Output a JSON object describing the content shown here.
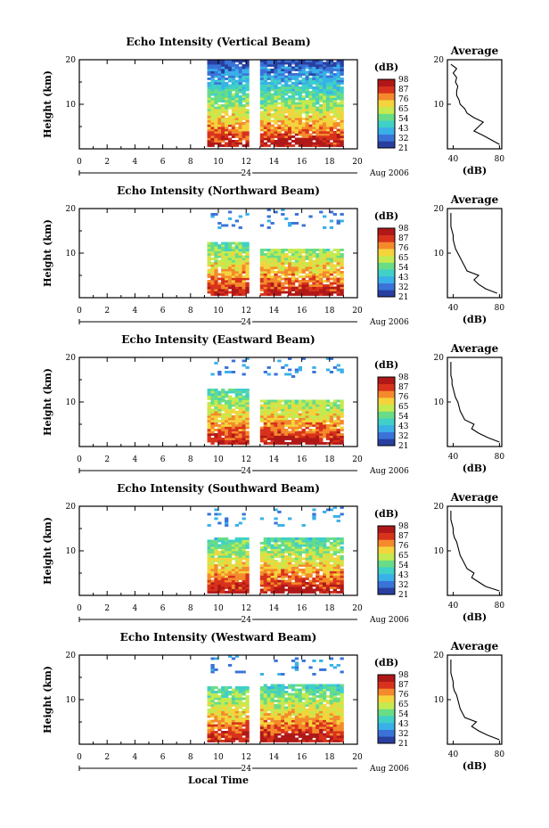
{
  "figure": {
    "xlabel": "Local Time",
    "date_label": "Aug 2006",
    "day_label": "24",
    "colorbar_unit": "(dB)",
    "avg_title": "Average",
    "avg_xlabel": "(dB)",
    "ylabel": "Height (km)"
  },
  "colors": {
    "scale": [
      "#283fa0",
      "#3a73d8",
      "#39b0e8",
      "#3fd0c8",
      "#68dc86",
      "#c4ea50",
      "#f4d43c",
      "#f48a2c",
      "#d8321c",
      "#b01818"
    ]
  },
  "chart_data": [
    {
      "type": "heatmap",
      "title": "Echo Intensity (Vertical Beam)",
      "xlabel": "Local Time",
      "ylabel": "Height (km)",
      "xlim": [
        0,
        20
      ],
      "ylim": [
        0,
        20
      ],
      "xticks": [
        0,
        2,
        4,
        6,
        8,
        10,
        12,
        14,
        16,
        18,
        20
      ],
      "yticks": [
        10,
        20
      ],
      "colorbar_ticks": [
        21,
        32,
        43,
        54,
        65,
        76,
        87,
        98
      ],
      "colorbar_unit": "(dB)",
      "data_gaps_hours": [
        [
          0,
          9.2
        ],
        [
          12.2,
          13.0
        ]
      ],
      "data_top_km": {
        "seg1": 19.5,
        "seg2": 19.5
      },
      "peak_layer_km": [
        0.5,
        2.5
      ],
      "avg_profile": {
        "title": "Average",
        "xlabel": "(dB)",
        "xlim": [
          35,
          82
        ],
        "xticks": [
          40,
          80
        ],
        "ylim": [
          0,
          20
        ],
        "height_km": [
          1,
          2,
          3,
          4,
          5,
          6,
          7,
          8,
          9,
          10,
          11,
          12,
          13,
          14,
          15,
          16,
          17,
          18,
          19
        ],
        "power_db": [
          80,
          73,
          66,
          58,
          62,
          66,
          58,
          52,
          50,
          46,
          45,
          43,
          43,
          44,
          42,
          43,
          40,
          43,
          38
        ]
      }
    },
    {
      "type": "heatmap",
      "title": "Echo Intensity (Northward Beam)",
      "xlabel": "Local Time",
      "ylabel": "Height (km)",
      "xlim": [
        0,
        20
      ],
      "ylim": [
        0,
        20
      ],
      "xticks": [
        0,
        2,
        4,
        6,
        8,
        10,
        12,
        14,
        16,
        18,
        20
      ],
      "yticks": [
        10,
        20
      ],
      "colorbar_ticks": [
        21,
        32,
        43,
        54,
        65,
        76,
        87,
        98
      ],
      "colorbar_unit": "(dB)",
      "data_gaps_hours": [
        [
          0,
          9.2
        ],
        [
          12.2,
          13.0
        ]
      ],
      "data_top_km": {
        "seg1": 12.0,
        "seg2": 10.5
      },
      "peak_layer_km": [
        0.3,
        1.5
      ],
      "avg_profile": {
        "title": "Average",
        "xlabel": "(dB)",
        "xlim": [
          35,
          82
        ],
        "xticks": [
          40,
          80
        ],
        "ylim": [
          0,
          20
        ],
        "height_km": [
          1,
          2,
          3,
          4,
          5,
          6,
          7,
          8,
          9,
          10,
          11,
          12,
          13,
          14,
          15,
          16,
          17,
          18,
          19
        ],
        "power_db": [
          78,
          68,
          62,
          58,
          62,
          52,
          50,
          48,
          46,
          44,
          42,
          41,
          40,
          40,
          39,
          38,
          38,
          38,
          38
        ]
      }
    },
    {
      "type": "heatmap",
      "title": "Echo Intensity (Eastward Beam)",
      "xlabel": "Local Time",
      "ylabel": "Height (km)",
      "xlim": [
        0,
        20
      ],
      "ylim": [
        0,
        20
      ],
      "xticks": [
        0,
        2,
        4,
        6,
        8,
        10,
        12,
        14,
        16,
        18,
        20
      ],
      "yticks": [
        10,
        20
      ],
      "colorbar_ticks": [
        21,
        32,
        43,
        54,
        65,
        76,
        87,
        98
      ],
      "colorbar_unit": "(dB)",
      "data_gaps_hours": [
        [
          0,
          9.2
        ],
        [
          12.2,
          13.0
        ]
      ],
      "data_top_km": {
        "seg1": 12.5,
        "seg2": 10.0
      },
      "peak_layer_km": [
        0.3,
        2.0
      ],
      "avg_profile": {
        "title": "Average",
        "xlabel": "(dB)",
        "xlim": [
          35,
          82
        ],
        "xticks": [
          40,
          80
        ],
        "ylim": [
          0,
          20
        ],
        "height_km": [
          1,
          2,
          3,
          4,
          5,
          6,
          7,
          8,
          9,
          10,
          11,
          12,
          13,
          14,
          15,
          16,
          17,
          18,
          19
        ],
        "power_db": [
          80,
          70,
          62,
          56,
          58,
          50,
          48,
          46,
          45,
          44,
          42,
          41,
          40,
          39,
          39,
          38,
          38,
          38,
          38
        ]
      }
    },
    {
      "type": "heatmap",
      "title": "Echo Intensity (Southward Beam)",
      "xlabel": "Local Time",
      "ylabel": "Height (km)",
      "xlim": [
        0,
        20
      ],
      "ylim": [
        0,
        20
      ],
      "xticks": [
        0,
        2,
        4,
        6,
        8,
        10,
        12,
        14,
        16,
        18,
        20
      ],
      "yticks": [
        10,
        20
      ],
      "colorbar_ticks": [
        21,
        32,
        43,
        54,
        65,
        76,
        87,
        98
      ],
      "colorbar_unit": "(dB)",
      "data_gaps_hours": [
        [
          0,
          9.2
        ],
        [
          12.2,
          13.0
        ]
      ],
      "data_top_km": {
        "seg1": 12.5,
        "seg2": 12.5
      },
      "peak_layer_km": [
        0.3,
        2.0
      ],
      "avg_profile": {
        "title": "Average",
        "xlabel": "(dB)",
        "xlim": [
          35,
          82
        ],
        "xticks": [
          40,
          80
        ],
        "ylim": [
          0,
          20
        ],
        "height_km": [
          1,
          2,
          3,
          4,
          5,
          6,
          7,
          8,
          9,
          10,
          11,
          12,
          13,
          14,
          15,
          16,
          17,
          18,
          19
        ],
        "power_db": [
          80,
          68,
          62,
          56,
          58,
          52,
          50,
          48,
          46,
          45,
          44,
          43,
          41,
          40,
          40,
          39,
          38,
          38,
          38
        ]
      }
    },
    {
      "type": "heatmap",
      "title": "Echo Intensity (Westward Beam)",
      "xlabel": "Local Time",
      "ylabel": "Height (km)",
      "xlim": [
        0,
        20
      ],
      "ylim": [
        0,
        20
      ],
      "xticks": [
        0,
        2,
        4,
        6,
        8,
        10,
        12,
        14,
        16,
        18,
        20
      ],
      "yticks": [
        10,
        20
      ],
      "colorbar_ticks": [
        21,
        32,
        43,
        54,
        65,
        76,
        87,
        98
      ],
      "colorbar_unit": "(dB)",
      "data_gaps_hours": [
        [
          0,
          9.2
        ],
        [
          12.2,
          13.0
        ]
      ],
      "data_top_km": {
        "seg1": 12.5,
        "seg2": 13.0
      },
      "peak_layer_km": [
        0.5,
        2.5
      ],
      "avg_profile": {
        "title": "Average",
        "xlabel": "(dB)",
        "xlim": [
          35,
          82
        ],
        "xticks": [
          40,
          80
        ],
        "ylim": [
          0,
          20
        ],
        "height_km": [
          1,
          2,
          3,
          4,
          5,
          6,
          7,
          8,
          9,
          10,
          11,
          12,
          13,
          14,
          15,
          16,
          17,
          18,
          19
        ],
        "power_db": [
          80,
          70,
          62,
          56,
          60,
          50,
          48,
          46,
          45,
          44,
          43,
          41,
          40,
          40,
          39,
          38,
          38,
          38,
          38
        ]
      }
    }
  ]
}
